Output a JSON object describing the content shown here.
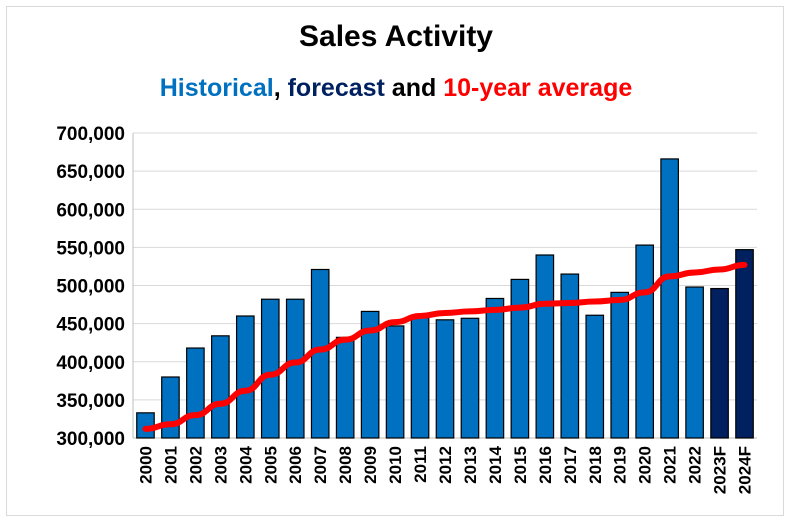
{
  "chart_data": {
    "type": "bar",
    "title": "Sales Activity",
    "subtitle": {
      "historical": "Historical",
      "comma": ", ",
      "forecast": "forecast",
      "and": " and ",
      "average": "10-year average"
    },
    "categories": [
      "2000",
      "2001",
      "2002",
      "2003",
      "2004",
      "2005",
      "2006",
      "2007",
      "2008",
      "2009",
      "2010",
      "2011",
      "2012",
      "2013",
      "2014",
      "2015",
      "2016",
      "2017",
      "2018",
      "2019",
      "2020",
      "2021",
      "2022",
      "2023F",
      "2024F"
    ],
    "series": [
      {
        "kind": "bar",
        "values": [
          333000,
          380000,
          418000,
          434000,
          460000,
          482000,
          482000,
          521000,
          432000,
          466000,
          447000,
          459000,
          455000,
          457000,
          483000,
          508000,
          540000,
          515000,
          461000,
          491000,
          553000,
          666000,
          498000,
          496000,
          547000
        ]
      },
      {
        "kind": "line",
        "values": [
          312000,
          318000,
          330000,
          345000,
          362000,
          383000,
          399000,
          416000,
          429000,
          441000,
          452000,
          460000,
          464000,
          466000,
          468000,
          471000,
          476000,
          477000,
          479000,
          481000,
          491000,
          512000,
          517000,
          521000,
          527000
        ]
      }
    ],
    "ylim": [
      300000,
      700000
    ],
    "yticks": [
      "300,000",
      "350,000",
      "400,000",
      "450,000",
      "500,000",
      "550,000",
      "600,000",
      "650,000",
      "700,000"
    ],
    "grid": true,
    "colors": {
      "historical": "#0070c0",
      "forecast": "#002060",
      "average": "#ff0000",
      "grid": "#d9d9d9"
    }
  }
}
